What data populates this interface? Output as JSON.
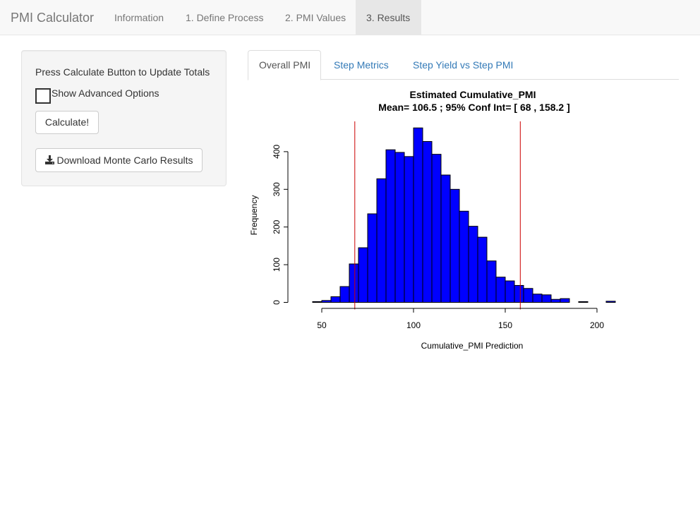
{
  "navbar": {
    "brand": "PMI Calculator",
    "items": [
      {
        "label": "Information",
        "active": false
      },
      {
        "label": "1. Define Process",
        "active": false
      },
      {
        "label": "2. PMI Values",
        "active": false
      },
      {
        "label": "3. Results",
        "active": true
      }
    ]
  },
  "sidebar": {
    "instruction": "Press Calculate Button to Update Totals",
    "advanced_label": "Show Advanced Options",
    "advanced_checked": false,
    "calculate_label": "Calculate!",
    "download_label": "Download Monte Carlo Results",
    "download_icon": "download-icon"
  },
  "tabs": [
    {
      "label": "Overall PMI",
      "active": true
    },
    {
      "label": "Step Metrics",
      "active": false
    },
    {
      "label": "Step Yield vs Step PMI",
      "active": false
    }
  ],
  "colors": {
    "bar_fill": "#0000ff",
    "bar_stroke": "#000000",
    "ci_line": "#cc0000",
    "link": "#337ab7"
  },
  "chart_data": {
    "type": "bar",
    "title": "Estimated Cumulative_PMI",
    "subtitle": "Mean= 106.5 ;  95% Conf Int= [ 68 , 158.2 ]",
    "xlabel": "Cumulative_PMI Prediction",
    "ylabel": "Frequency",
    "xlim": [
      40,
      225
    ],
    "ylim": [
      0,
      470
    ],
    "xticks": [
      50,
      100,
      150,
      200
    ],
    "yticks": [
      0,
      100,
      200,
      300,
      400
    ],
    "bin_width": 5,
    "bins": [
      {
        "x0": 45,
        "count": 2
      },
      {
        "x0": 50,
        "count": 5
      },
      {
        "x0": 55,
        "count": 15
      },
      {
        "x0": 60,
        "count": 42
      },
      {
        "x0": 65,
        "count": 102
      },
      {
        "x0": 70,
        "count": 145
      },
      {
        "x0": 75,
        "count": 235
      },
      {
        "x0": 80,
        "count": 328
      },
      {
        "x0": 85,
        "count": 405
      },
      {
        "x0": 90,
        "count": 398
      },
      {
        "x0": 95,
        "count": 387
      },
      {
        "x0": 100,
        "count": 463
      },
      {
        "x0": 105,
        "count": 427
      },
      {
        "x0": 110,
        "count": 393
      },
      {
        "x0": 115,
        "count": 338
      },
      {
        "x0": 120,
        "count": 300
      },
      {
        "x0": 125,
        "count": 242
      },
      {
        "x0": 130,
        "count": 202
      },
      {
        "x0": 135,
        "count": 173
      },
      {
        "x0": 140,
        "count": 110
      },
      {
        "x0": 145,
        "count": 67
      },
      {
        "x0": 150,
        "count": 57
      },
      {
        "x0": 155,
        "count": 45
      },
      {
        "x0": 160,
        "count": 37
      },
      {
        "x0": 165,
        "count": 22
      },
      {
        "x0": 170,
        "count": 20
      },
      {
        "x0": 175,
        "count": 8
      },
      {
        "x0": 180,
        "count": 10
      },
      {
        "x0": 185,
        "count": 0
      },
      {
        "x0": 190,
        "count": 2
      },
      {
        "x0": 195,
        "count": 0
      },
      {
        "x0": 200,
        "count": 0
      },
      {
        "x0": 205,
        "count": 3
      }
    ],
    "ci_lines": [
      68,
      158.2
    ],
    "grid": false,
    "legend": "none"
  }
}
